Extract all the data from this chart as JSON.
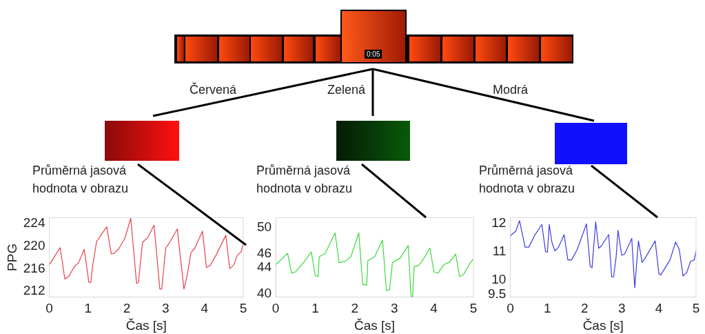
{
  "chart_data": [
    {
      "type": "other",
      "annotations": [
        "0:05"
      ]
    },
    {
      "type": "line",
      "annotations": [
        "Červená",
        "Průměrná jasová hodnota v obrazu"
      ],
      "xlabel": "Čas [s]",
      "ylabel": "PPG",
      "xlim": [
        0,
        5
      ],
      "xticks": [
        0,
        1,
        2,
        3,
        4,
        5
      ],
      "ylim": [
        211,
        225
      ],
      "yticks": [
        212,
        216,
        220,
        224
      ],
      "grid": false,
      "legend": false,
      "series": [
        {
          "color": "#e8404a",
          "x": [
            0,
            0.28,
            0.4,
            0.5,
            0.65,
            0.75,
            0.9,
            1.02,
            1.07,
            1.12,
            1.22,
            1.3,
            1.48,
            1.6,
            1.68,
            1.8,
            1.95,
            2.1,
            2.25,
            2.3,
            2.4,
            2.55,
            2.7,
            2.85,
            2.9,
            3.0,
            3.1,
            3.3,
            3.47,
            3.55,
            3.65,
            3.75,
            3.95,
            4.05,
            4.15,
            4.3,
            4.55,
            4.65,
            4.75,
            4.85,
            4.95,
            5.0
          ],
          "values": [
            216.7,
            219.7,
            214.2,
            214.6,
            216.4,
            217,
            219.4,
            213.6,
            213.6,
            216.6,
            220.8,
            221.6,
            223.4,
            218.6,
            218.7,
            219.6,
            221.4,
            224.9,
            213.4,
            213.6,
            220.6,
            221.6,
            223.7,
            212.4,
            212.4,
            219.6,
            220.6,
            223,
            212.4,
            214.6,
            218.8,
            219.6,
            222.6,
            216.2,
            216.6,
            218.4,
            221.9,
            216,
            216.6,
            218.4,
            219,
            220.6
          ]
        }
      ]
    },
    {
      "type": "line",
      "annotations": [
        "Zelená",
        "Průměrná jasová hodnota v obrazu"
      ],
      "xlabel": "Čas [s]",
      "xlim": [
        0,
        5
      ],
      "xticks": [
        0,
        1,
        2,
        3,
        4,
        5
      ],
      "ylim": [
        39.5,
        51.5
      ],
      "yticks": [
        40,
        44,
        46,
        50
      ],
      "grid": false,
      "legend": false,
      "series": [
        {
          "color": "#3ad83a",
          "x": [
            0,
            0.3,
            0.4,
            0.5,
            0.7,
            0.9,
            1.0,
            1.07,
            1.1,
            1.25,
            1.5,
            1.6,
            1.75,
            1.9,
            2.1,
            2.2,
            2.3,
            2.33,
            2.5,
            2.7,
            2.8,
            2.88,
            2.95,
            3.15,
            3.35,
            3.42,
            3.46,
            3.5,
            3.6,
            3.7,
            3.9,
            4.0,
            4.1,
            4.25,
            4.4,
            4.55,
            4.65,
            4.75,
            4.9,
            5.0
          ],
          "values": [
            44.4,
            46.1,
            43.1,
            43.3,
            44.7,
            46.3,
            42.7,
            42.6,
            45.6,
            46.1,
            49.2,
            44.7,
            44.9,
            45.6,
            49.2,
            41.4,
            41.3,
            45,
            45.6,
            48.1,
            40.5,
            40.6,
            44.7,
            45.4,
            47.3,
            39.6,
            39.6,
            44.1,
            44.2,
            44.9,
            46.9,
            43.3,
            43.1,
            44.4,
            44.8,
            46,
            42.6,
            42.9,
            44.5,
            45.3
          ]
        }
      ]
    },
    {
      "type": "line",
      "annotations": [
        "Modrá",
        "Průměrná jasová hodnota v obrazu"
      ],
      "xlabel": "Čas [s]",
      "xlim": [
        0,
        5
      ],
      "xticks": [
        0,
        1,
        2,
        3,
        4,
        5
      ],
      "ylim": [
        9.4,
        12.2
      ],
      "yticks": [
        9.5,
        10,
        11,
        12
      ],
      "grid": false,
      "legend": false,
      "series": [
        {
          "color": "#3a3ae0",
          "x": [
            0,
            0.15,
            0.25,
            0.4,
            0.5,
            0.65,
            0.85,
            0.95,
            1.0,
            1.05,
            1.12,
            1.2,
            1.3,
            1.45,
            1.55,
            1.65,
            1.8,
            2.05,
            2.15,
            2.2,
            2.3,
            2.38,
            2.45,
            2.65,
            2.73,
            2.78,
            2.85,
            2.9,
            3.0,
            3.08,
            3.27,
            3.35,
            3.45,
            3.55,
            3.65,
            3.9,
            4.0,
            4.05,
            4.3,
            4.45,
            4.55,
            4.65,
            4.75,
            4.85,
            4.95,
            5.0
          ],
          "values": [
            11.56,
            11.73,
            12.09,
            11.16,
            11.16,
            11.56,
            11.96,
            11,
            10.98,
            11.96,
            11.34,
            11.03,
            11.16,
            11.6,
            10.71,
            10.71,
            11.07,
            11.98,
            10.49,
            10.43,
            12.05,
            11.12,
            11.2,
            11.6,
            10.11,
            10.11,
            10.82,
            11.75,
            10.87,
            10.92,
            11.47,
            9.73,
            11.38,
            10.62,
            10.82,
            11.38,
            10.22,
            10.18,
            10.71,
            11.34,
            11.07,
            10.14,
            10.27,
            10.65,
            10.71,
            11.03
          ]
        }
      ]
    }
  ]
}
